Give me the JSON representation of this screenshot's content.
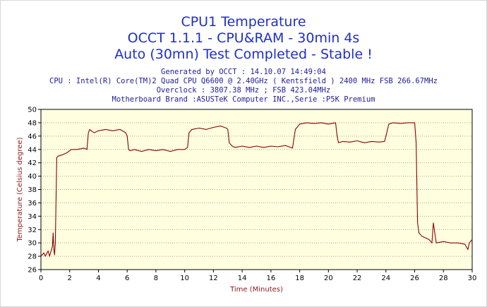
{
  "titles": [
    "CPU1 Temperature",
    "OCCT 1.1.1 - CPU&RAM - 30min 4s",
    "Auto (30mn) Test Completed - Stable !"
  ],
  "info_lines": [
    "Generated by OCCT : 14.10.07 14:49:04",
    "CPU : Intel(R) Core(TM)2 Quad CPU Q6600 @ 2.40GHz ( Kentsfield ) 2400 MHz FSB 266.67MHz",
    "Overclock : 3807.38 MHz ; FSB 423.04MHz",
    "Motherboard Brand :ASUSTeK Computer INC.,Serie :P5K Premium"
  ],
  "chart_data": {
    "type": "line",
    "xlabel": "Time (Minutes)",
    "ylabel": "Temperature (Celsius degree)",
    "xlim": [
      0,
      30
    ],
    "ylim": [
      26,
      50
    ],
    "xticks": [
      0,
      2,
      4,
      6,
      8,
      10,
      12,
      14,
      16,
      18,
      20,
      22,
      24,
      26,
      28,
      30
    ],
    "yticks": [
      26,
      28,
      30,
      32,
      34,
      36,
      38,
      40,
      42,
      44,
      46,
      48,
      50
    ],
    "grid": "horizontal dotted",
    "line_color": "#8b0000",
    "series": [
      {
        "x": [
          0,
          0.2,
          0.3,
          0.5,
          0.6,
          0.8,
          0.85,
          0.9,
          0.95,
          1.0,
          1.1,
          1.2,
          1.5,
          1.8,
          2.0,
          2.1,
          2.5,
          3.0,
          3.2,
          3.3,
          3.4,
          3.5,
          3.7,
          4.0,
          4.5,
          5.0,
          5.5,
          5.9,
          6.0,
          6.1,
          6.2,
          6.5,
          7.0,
          7.5,
          8.0,
          8.5,
          9.0,
          9.5,
          10.0,
          10.2,
          10.3,
          10.5,
          11.0,
          11.5,
          12.0,
          12.5,
          12.9,
          13.0,
          13.1,
          13.3,
          13.5,
          14.0,
          14.5,
          15.0,
          15.5,
          16.0,
          16.5,
          17.0,
          17.5,
          17.7,
          18.0,
          18.5,
          19.0,
          19.5,
          20.0,
          20.5,
          20.6,
          20.7,
          21.0,
          21.5,
          22.0,
          22.5,
          23.0,
          23.5,
          23.9,
          24.0,
          24.2,
          24.5,
          25.0,
          25.5,
          26.0,
          26.1,
          26.2,
          26.3,
          26.5,
          27.0,
          27.2,
          27.3,
          27.5,
          28.0,
          28.5,
          29.0,
          29.5,
          29.7,
          29.8,
          30.0
        ],
        "y": [
          28,
          28.5,
          28,
          28.8,
          28,
          29.5,
          31.5,
          29,
          28.2,
          30,
          42.8,
          43,
          43.2,
          43.5,
          43.8,
          44,
          44,
          44.2,
          44,
          46.5,
          47,
          46.8,
          46.5,
          46.8,
          47,
          46.8,
          47,
          46.5,
          46,
          44,
          43.8,
          44,
          43.7,
          44,
          43.8,
          44,
          43.7,
          44,
          44,
          44.3,
          46.5,
          47,
          47.2,
          47,
          47.3,
          47.5,
          47.2,
          47,
          45,
          44.5,
          44.3,
          44.5,
          44.3,
          44.5,
          44.3,
          44.5,
          44.4,
          44.6,
          44.2,
          47,
          47.8,
          48,
          47.9,
          48,
          47.8,
          48,
          46,
          45,
          45.2,
          45.1,
          45.3,
          45,
          45.2,
          45.1,
          45.2,
          46,
          47.8,
          48,
          47.9,
          48,
          48,
          45,
          33,
          31.5,
          31,
          30.5,
          30,
          33,
          30,
          30.2,
          30,
          30,
          29.8,
          29,
          30,
          30.5
        ]
      }
    ]
  }
}
